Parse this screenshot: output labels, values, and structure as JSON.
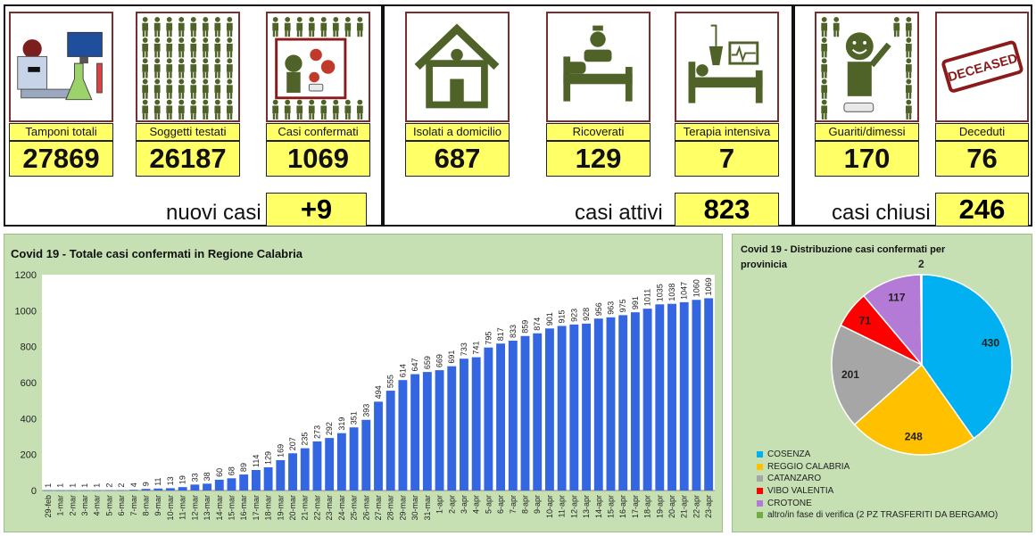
{
  "stats": {
    "tamponi": {
      "label": "Tamponi totali",
      "value": "27869"
    },
    "soggetti": {
      "label": "Soggetti testati",
      "value": "26187"
    },
    "confermati": {
      "label": "Casi confermati",
      "value": "1069"
    },
    "isolati": {
      "label": "Isolati a domicilio",
      "value": "687"
    },
    "ricoverati": {
      "label": "Ricoverati",
      "value": "129"
    },
    "terapia": {
      "label": "Terapia intensiva",
      "value": "7"
    },
    "guariti": {
      "label": "Guariti/dimessi",
      "value": "170"
    },
    "deceduti": {
      "label": "Deceduti",
      "value": "76"
    }
  },
  "summary": {
    "nuovi": {
      "label": "nuovi casi",
      "value": "+9"
    },
    "attivi": {
      "label": "casi attivi",
      "value": "823"
    },
    "chiusi": {
      "label": "casi chiusi",
      "value": "246"
    }
  },
  "icons": {
    "tamponi": "lab-equipment-icon",
    "soggetti": "crowd-icon",
    "confermati": "virus-icon",
    "isolati": "house-icon",
    "ricoverati": "hospital-bed-icon",
    "terapia": "icu-bed-icon",
    "guariti": "recovered-person-icon",
    "deceduti": "deceased-stamp-icon",
    "deceased_stamp_text": "DECEASED"
  },
  "colors": {
    "highlight": "#ffff66",
    "chart_bg": "#c6e0b4",
    "bar": "#3366e0",
    "icon_green": "#4f6228",
    "icon_frame": "#7a2e2e"
  },
  "chart_data": [
    {
      "type": "bar",
      "title": "Covid 19 - Totale casi confermati in Regione Calabria",
      "xlabel": "",
      "ylabel": "",
      "ylim": [
        0,
        1200
      ],
      "yticks": [
        0,
        200,
        400,
        600,
        800,
        1000,
        1200
      ],
      "grid": false,
      "categories": [
        "29-feb",
        "1-mar",
        "2-mar",
        "3-mar",
        "4-mar",
        "5-mar",
        "6-mar",
        "7-mar",
        "8-mar",
        "9-mar",
        "10-mar",
        "11-mar",
        "12-mar",
        "13-mar",
        "14-mar",
        "15-mar",
        "16-mar",
        "17-mar",
        "18-mar",
        "19-mar",
        "20-mar",
        "21-mar",
        "22-mar",
        "23-mar",
        "24-mar",
        "25-mar",
        "26-mar",
        "27-mar",
        "28-mar",
        "29-mar",
        "30-mar",
        "31-mar",
        "1-apr",
        "2-apr",
        "3-apr",
        "4-apr",
        "5-apr",
        "6-apr",
        "7-apr",
        "8-apr",
        "9-apr",
        "10-apr",
        "11-apr",
        "12-apr",
        "13-apr",
        "14-apr",
        "15-apr",
        "16-apr",
        "17-apr",
        "18-apr",
        "19-apr",
        "20-apr",
        "21-apr",
        "22-apr",
        "23-apr"
      ],
      "values": [
        1,
        1,
        1,
        1,
        1,
        2,
        2,
        4,
        9,
        11,
        13,
        19,
        33,
        38,
        60,
        68,
        89,
        114,
        129,
        169,
        207,
        235,
        273,
        292,
        319,
        351,
        393,
        494,
        555,
        614,
        647,
        659,
        669,
        691,
        733,
        741,
        795,
        817,
        833,
        859,
        874,
        901,
        915,
        923,
        928,
        956,
        963,
        975,
        991,
        1011,
        1035,
        1038,
        1047,
        1060,
        1069
      ]
    },
    {
      "type": "pie",
      "title": "Covid 19 - Distribuzione casi confermati per provinicia",
      "legend": "bottom-left",
      "slices": [
        {
          "name": "COSENZA",
          "value": 430,
          "color": "#00b0f0"
        },
        {
          "name": "REGGIO CALABRIA",
          "value": 248,
          "color": "#ffc000"
        },
        {
          "name": "CATANZARO",
          "value": 201,
          "color": "#a6a6a6"
        },
        {
          "name": "VIBO VALENTIA",
          "value": 71,
          "color": "#ff0000"
        },
        {
          "name": "CROTONE",
          "value": 117,
          "color": "#b47bd6"
        },
        {
          "name": "altro/in fase di verifica (2 PZ TRASFERITI DA BERGAMO)",
          "value": 2,
          "color": "#70ad47"
        }
      ]
    }
  ]
}
